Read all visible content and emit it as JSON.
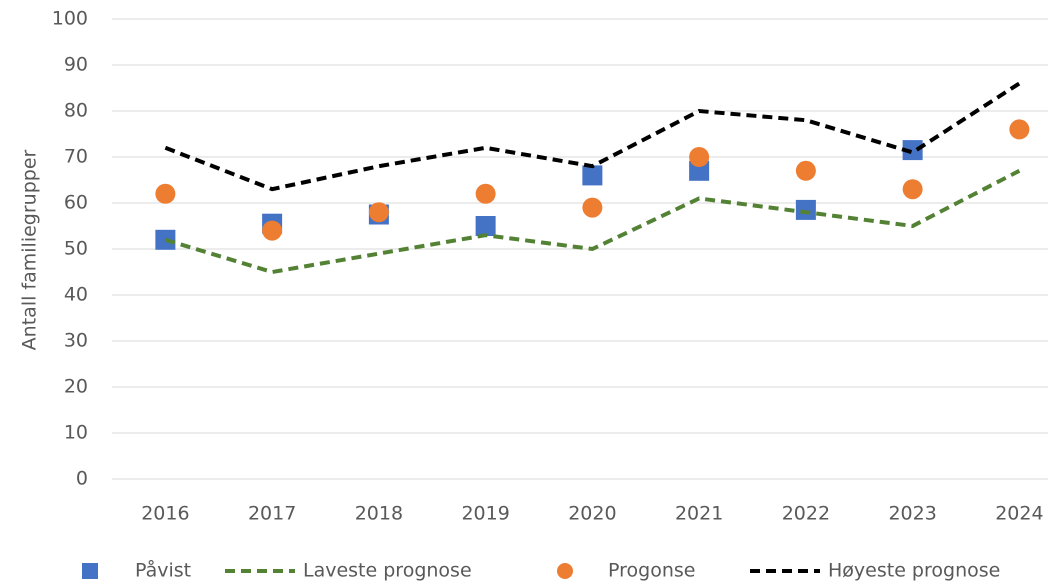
{
  "chart_data": {
    "type": "line",
    "y_label": "Antall familiegrupper",
    "categories": [
      "2016",
      "2017",
      "2018",
      "2019",
      "2020",
      "2021",
      "2022",
      "2023",
      "2024"
    ],
    "ylim": [
      0,
      100
    ],
    "yticks": [
      0,
      10,
      20,
      30,
      40,
      50,
      60,
      70,
      80,
      90,
      100
    ],
    "grid": true,
    "series": [
      {
        "name": "Påvist",
        "color": "#4472c4",
        "marker": "square",
        "values": [
          52,
          55.5,
          57.5,
          55,
          66,
          67,
          58.5,
          71.5,
          null
        ]
      },
      {
        "name": "Laveste prognose",
        "color": "#548235",
        "line": "dashed",
        "values": [
          52,
          45,
          49,
          53,
          50,
          61,
          58,
          55,
          67
        ]
      },
      {
        "name": "Progonse",
        "color": "#ed7d31",
        "marker": "circle",
        "values": [
          62,
          54,
          58,
          62,
          59,
          70,
          67,
          63,
          76
        ]
      },
      {
        "name": "Høyeste prognose",
        "color": "#000000",
        "line": "dashed",
        "values": [
          72,
          63,
          68,
          72,
          68,
          80,
          78,
          71,
          86
        ]
      }
    ],
    "legend": "bottom"
  }
}
